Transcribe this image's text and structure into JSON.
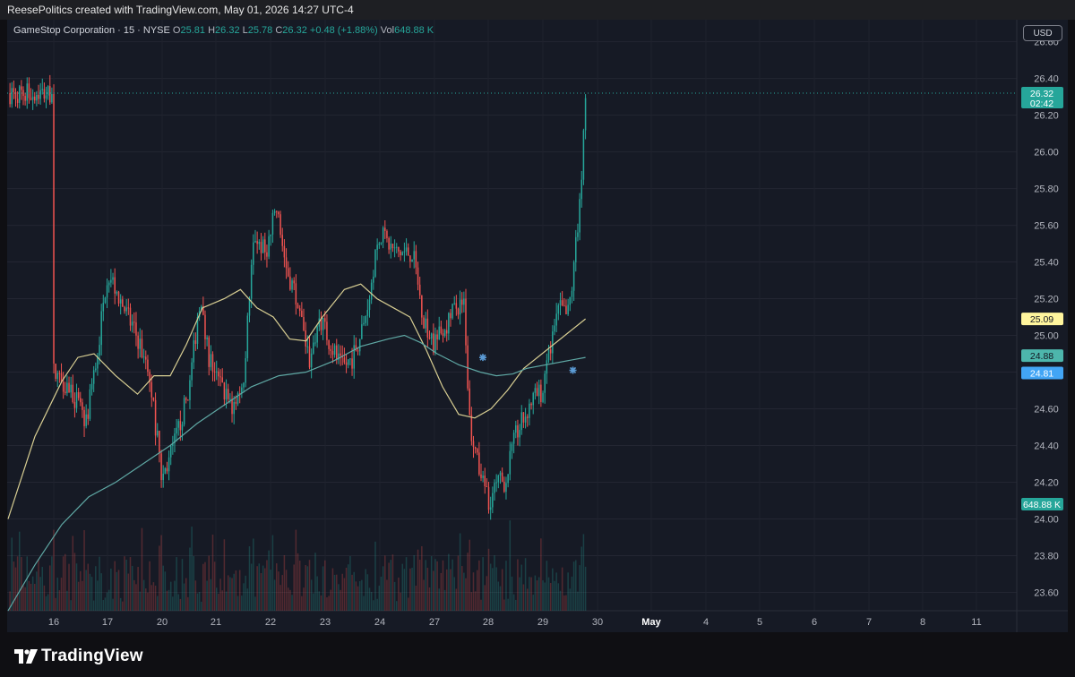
{
  "header": {
    "attribution": "ReesePolitics created with TradingView.com, May 01, 2026 14:27 UTC-4"
  },
  "legend": {
    "symbol": "GameStop Corporation · 15 · NYSE",
    "o_label": "O",
    "o_value": "25.81",
    "h_label": "H",
    "h_value": "26.32",
    "l_label": "L",
    "l_value": "25.78",
    "c_label": "C",
    "c_value": "26.32",
    "change": "+0.48 (+1.88%)",
    "vol_label": "Vol",
    "vol_value": "648.88 K"
  },
  "currency_button": "USD",
  "brand": {
    "name": "TradingView"
  },
  "colors": {
    "up": "#26a69a",
    "down": "#ef5350",
    "ma_fast": "#d9cf93",
    "ma_slow": "#5fa8a4",
    "background": "#161a25"
  },
  "chart_data": {
    "type": "candlestick",
    "title": "GameStop Corporation · 15 · NYSE",
    "interval": "15",
    "ylim": [
      23.5,
      26.72
    ],
    "y_ticks": [
      "26.60",
      "26.40",
      "26.20",
      "26.00",
      "25.80",
      "25.60",
      "25.40",
      "25.20",
      "25.00",
      "24.80",
      "24.60",
      "24.40",
      "24.20",
      "24.00",
      "23.80",
      "23.60"
    ],
    "x_ticks": [
      "16",
      "17",
      "20",
      "21",
      "22",
      "23",
      "24",
      "27",
      "28",
      "29",
      "30",
      "May",
      "4",
      "5",
      "6",
      "7",
      "8",
      "11"
    ],
    "grid": true,
    "price_labels": [
      {
        "value": "26.32",
        "extra": "02:42",
        "color": "#26a69a"
      },
      {
        "value": "25.09",
        "color": "#fff59d"
      },
      {
        "value": "24.88",
        "color": "#4db6ac"
      },
      {
        "value": "24.81",
        "color": "#42a5f5"
      },
      {
        "value": "648.88 K",
        "color": "#26a69a"
      }
    ],
    "last_price": 26.32,
    "anchors": [
      {
        "t": 0.0,
        "p": 24.8
      },
      {
        "t": 0.3,
        "p": 24.72
      },
      {
        "t": 0.6,
        "p": 24.52
      },
      {
        "t": 0.8,
        "p": 24.88
      },
      {
        "t": 1.0,
        "p": 25.35
      },
      {
        "t": 1.3,
        "p": 25.15
      },
      {
        "t": 1.6,
        "p": 24.95
      },
      {
        "t": 1.8,
        "p": 24.7
      },
      {
        "t": 2.0,
        "p": 24.22
      },
      {
        "t": 2.2,
        "p": 24.38
      },
      {
        "t": 2.5,
        "p": 24.7
      },
      {
        "t": 2.7,
        "p": 25.2
      },
      {
        "t": 2.85,
        "p": 24.9
      },
      {
        "t": 3.0,
        "p": 24.78
      },
      {
        "t": 3.3,
        "p": 24.6
      },
      {
        "t": 3.5,
        "p": 24.75
      },
      {
        "t": 3.7,
        "p": 25.55
      },
      {
        "t": 3.9,
        "p": 25.45
      },
      {
        "t": 4.0,
        "p": 25.55
      },
      {
        "t": 4.1,
        "p": 25.7
      },
      {
        "t": 4.3,
        "p": 25.35
      },
      {
        "t": 4.5,
        "p": 25.2
      },
      {
        "t": 4.7,
        "p": 24.85
      },
      {
        "t": 4.9,
        "p": 25.1
      },
      {
        "t": 5.1,
        "p": 24.95
      },
      {
        "t": 5.3,
        "p": 24.82
      },
      {
        "t": 5.5,
        "p": 24.88
      },
      {
        "t": 5.7,
        "p": 25.05
      },
      {
        "t": 6.0,
        "p": 25.55
      },
      {
        "t": 6.3,
        "p": 25.45
      },
      {
        "t": 6.6,
        "p": 25.45
      },
      {
        "t": 6.8,
        "p": 25.1
      },
      {
        "t": 7.0,
        "p": 24.95
      },
      {
        "t": 7.2,
        "p": 25.05
      },
      {
        "t": 7.4,
        "p": 25.15
      },
      {
        "t": 7.55,
        "p": 25.2
      },
      {
        "t": 7.65,
        "p": 24.55
      },
      {
        "t": 7.8,
        "p": 24.3
      },
      {
        "t": 8.0,
        "p": 24.1
      },
      {
        "t": 8.2,
        "p": 24.2
      },
      {
        "t": 8.3,
        "p": 24.2
      },
      {
        "t": 8.5,
        "p": 24.45
      },
      {
        "t": 8.8,
        "p": 24.65
      },
      {
        "t": 9.0,
        "p": 24.7
      },
      {
        "t": 9.15,
        "p": 24.95
      },
      {
        "t": 9.3,
        "p": 25.15
      },
      {
        "t": 9.45,
        "p": 25.1
      },
      {
        "t": 9.55,
        "p": 25.3
      },
      {
        "t": 9.65,
        "p": 25.65
      },
      {
        "t": 9.72,
        "p": 25.9
      },
      {
        "t": 9.78,
        "p": 26.32
      }
    ],
    "ma_fast_points": [
      [
        0,
        24.0
      ],
      [
        0.5,
        24.45
      ],
      [
        1.0,
        24.75
      ],
      [
        1.3,
        24.88
      ],
      [
        1.6,
        24.9
      ],
      [
        2.0,
        24.78
      ],
      [
        2.4,
        24.68
      ],
      [
        2.7,
        24.78
      ],
      [
        3.0,
        24.78
      ],
      [
        3.3,
        24.95
      ],
      [
        3.6,
        25.15
      ],
      [
        4.0,
        25.2
      ],
      [
        4.3,
        25.25
      ],
      [
        4.6,
        25.15
      ],
      [
        4.9,
        25.1
      ],
      [
        5.2,
        24.98
      ],
      [
        5.5,
        24.97
      ],
      [
        5.8,
        25.1
      ],
      [
        6.2,
        25.25
      ],
      [
        6.5,
        25.28
      ],
      [
        6.8,
        25.2
      ],
      [
        7.1,
        25.15
      ],
      [
        7.4,
        25.1
      ],
      [
        7.7,
        24.92
      ],
      [
        8.0,
        24.72
      ],
      [
        8.3,
        24.57
      ],
      [
        8.6,
        24.55
      ],
      [
        8.9,
        24.6
      ],
      [
        9.2,
        24.7
      ],
      [
        9.5,
        24.82
      ],
      [
        9.78,
        25.09
      ]
    ],
    "ma_slow_points": [
      [
        0,
        23.5
      ],
      [
        0.5,
        23.75
      ],
      [
        1.0,
        23.97
      ],
      [
        1.5,
        24.12
      ],
      [
        2.0,
        24.2
      ],
      [
        2.5,
        24.3
      ],
      [
        3.0,
        24.4
      ],
      [
        3.5,
        24.52
      ],
      [
        4.0,
        24.62
      ],
      [
        4.5,
        24.72
      ],
      [
        5.0,
        24.78
      ],
      [
        5.5,
        24.8
      ],
      [
        6.0,
        24.86
      ],
      [
        6.5,
        24.94
      ],
      [
        7.0,
        24.98
      ],
      [
        7.3,
        25.0
      ],
      [
        7.6,
        24.96
      ],
      [
        7.9,
        24.9
      ],
      [
        8.3,
        24.84
      ],
      [
        8.7,
        24.8
      ],
      [
        9.0,
        24.78
      ],
      [
        9.3,
        24.79
      ],
      [
        9.55,
        24.82
      ],
      [
        9.78,
        24.88
      ]
    ],
    "markers": [
      {
        "t": 7.9,
        "p": 24.88
      },
      {
        "t": 9.55,
        "p": 24.81
      }
    ],
    "volume_axis_max": 648.88
  }
}
